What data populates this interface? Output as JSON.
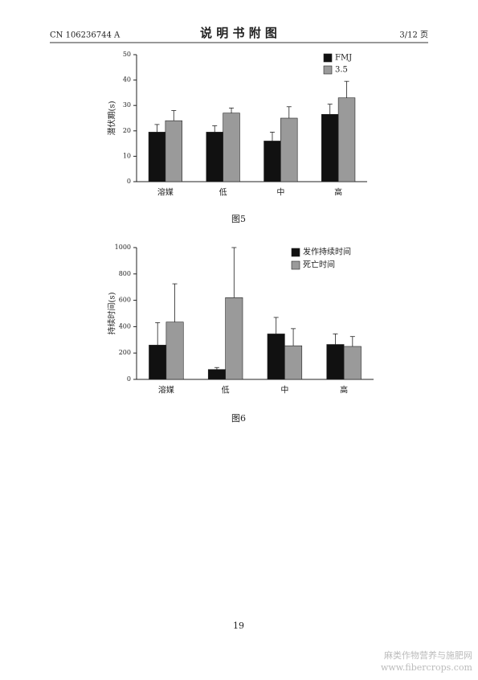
{
  "header": {
    "left": "CN 106236744 A",
    "title": "说 明 书 附 图",
    "right": "3/12 页"
  },
  "chart_data": [
    {
      "type": "bar",
      "caption": "图5",
      "y_label": "潜伏期(s)",
      "categories": [
        "溶媒",
        "低",
        "中",
        "高"
      ],
      "series": [
        {
          "name": "FMJ",
          "color": "#111111",
          "values": [
            19.5,
            19.5,
            16,
            26.5
          ],
          "errors": [
            3,
            2.5,
            3.5,
            4
          ]
        },
        {
          "name": "3.5",
          "color": "#9a9a9a",
          "values": [
            24,
            27,
            25,
            33
          ],
          "errors": [
            4,
            2,
            4.5,
            6.5
          ]
        }
      ],
      "ylim": [
        0,
        50
      ],
      "yticks": [
        0,
        10,
        20,
        30,
        40,
        50
      ],
      "legend": "upper right"
    },
    {
      "type": "bar",
      "caption": "图6",
      "y_label": "持续时间(s)",
      "categories": [
        "溶媒",
        "低",
        "中",
        "高"
      ],
      "series": [
        {
          "name": "发作持续时间",
          "color": "#111111",
          "values": [
            260,
            75,
            345,
            265
          ],
          "errors": [
            170,
            15,
            125,
            80
          ]
        },
        {
          "name": "死亡时间",
          "color": "#9a9a9a",
          "values": [
            435,
            620,
            255,
            250
          ],
          "errors": [
            290,
            380,
            130,
            75
          ]
        }
      ],
      "ylim": [
        0,
        1000
      ],
      "yticks": [
        0,
        200,
        400,
        600,
        800,
        1000
      ],
      "legend": "upper right"
    }
  ],
  "page_number": "19",
  "watermark": [
    "麻类作物营养与施肥网",
    "www.fibercrops.com"
  ]
}
